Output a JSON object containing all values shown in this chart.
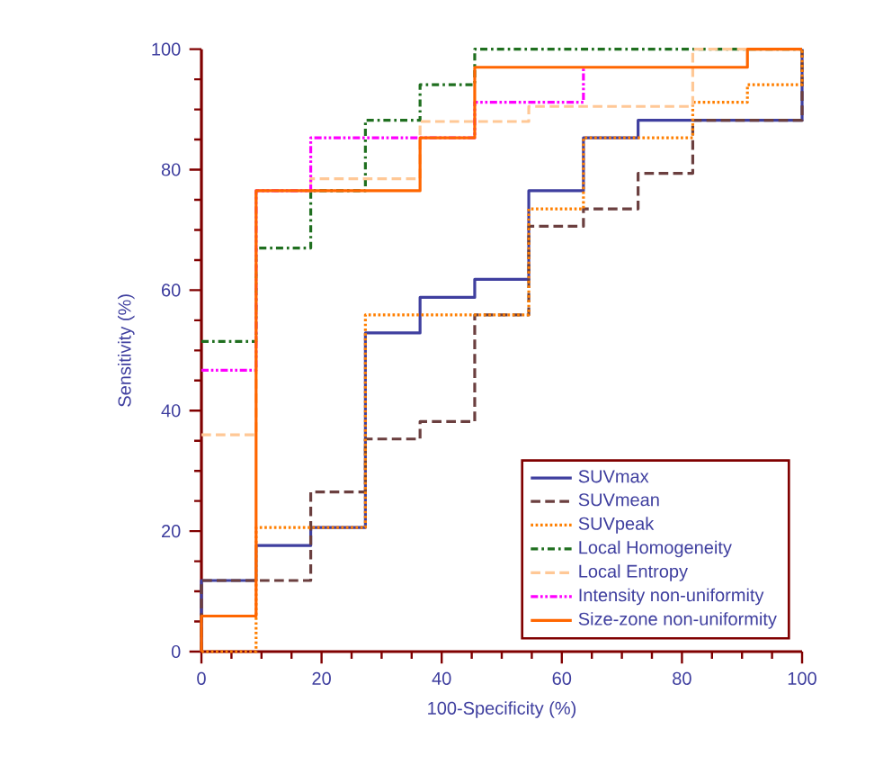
{
  "chart_data": {
    "type": "step",
    "xlabel": "100-Specificity (%)",
    "ylabel": "Sensitivity (%)",
    "xlim": [
      0,
      100
    ],
    "ylim": [
      0,
      100
    ],
    "xticks": [
      0,
      20,
      40,
      60,
      80,
      100
    ],
    "yticks": [
      0,
      20,
      40,
      60,
      80,
      100
    ],
    "grid": false,
    "legend": "bottom right",
    "marker": "none",
    "series": [
      {
        "name": "SUVmax",
        "color": "#3f3f9f",
        "line_style": "solid",
        "x": [
          0,
          0,
          9.1,
          18.2,
          27.3,
          36.4,
          45.5,
          54.5,
          63.6,
          72.7,
          100
        ],
        "values": [
          0,
          11.8,
          17.6,
          20.6,
          52.9,
          58.8,
          61.8,
          76.5,
          85.3,
          88.2,
          100
        ]
      },
      {
        "name": "SUVmean",
        "color": "#6b3f3f",
        "line_style": "dashed",
        "x": [
          0,
          0,
          18.2,
          27.3,
          36.4,
          45.5,
          54.5,
          63.6,
          72.7,
          81.8,
          100
        ],
        "values": [
          0,
          11.8,
          26.5,
          35.3,
          38.2,
          55.9,
          70.6,
          73.5,
          79.4,
          88.2,
          100
        ]
      },
      {
        "name": "SUVpeak",
        "color": "#ff7f00",
        "line_style": "dotted",
        "x": [
          0,
          9.1,
          27.3,
          54.5,
          63.6,
          81.8,
          90.9,
          100
        ],
        "values": [
          0,
          20.6,
          55.9,
          73.5,
          85.3,
          91.2,
          94.1,
          100
        ]
      },
      {
        "name": "Local Homogeneity",
        "color": "#1f6f1f",
        "line_style": "dashdot",
        "x": [
          0,
          9.1,
          18.2,
          27.3,
          36.4,
          45.5,
          100
        ],
        "values": [
          51.5,
          67,
          76.5,
          88.2,
          94.1,
          100,
          100
        ]
      },
      {
        "name": "Local Entropy",
        "color": "#ffc896",
        "line_style": "dashed",
        "x": [
          0,
          9.1,
          18.2,
          36.4,
          54.5,
          81.8,
          100
        ],
        "values": [
          36,
          76.5,
          78.5,
          88,
          90.5,
          100,
          100
        ]
      },
      {
        "name": "Intensity non-uniformity",
        "color": "#ff00ff",
        "line_style": "dashdotdot",
        "x": [
          0,
          9.1,
          18.2,
          45.5,
          63.6
        ],
        "values": [
          46.7,
          76.5,
          85.3,
          91.2,
          97
        ]
      },
      {
        "name": "Size-zone non-uniformity",
        "color": "#ff6600",
        "line_style": "solid",
        "x": [
          0,
          0,
          9.1,
          36.4,
          45.5,
          90.9,
          100
        ],
        "values": [
          0,
          5.9,
          76.5,
          85.3,
          97,
          100,
          100
        ]
      }
    ]
  }
}
